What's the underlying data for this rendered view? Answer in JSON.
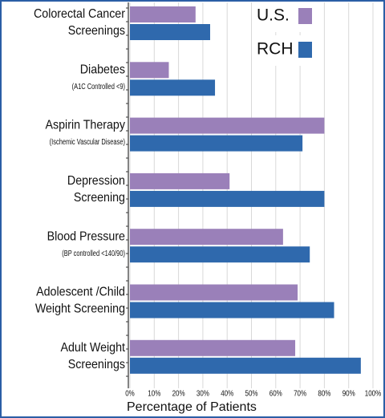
{
  "chart_data": {
    "type": "bar",
    "orientation": "horizontal",
    "categories": [
      [
        "Colorectal Cancer",
        "Screenings"
      ],
      [
        "Diabetes"
      ],
      [
        "Aspirin Therapy"
      ],
      [
        "Depression",
        "Screening"
      ],
      [
        "Blood Pressure"
      ],
      [
        "Adolescent /Child",
        "Weight Screening"
      ],
      [
        "Adult Weight",
        "Screenings"
      ]
    ],
    "category_notes": [
      null,
      "(A1C Controlled <9)",
      "(Ischemic Vascular Disease)",
      null,
      "(BP controlled <140/90)",
      null,
      null
    ],
    "series": [
      {
        "name": "U.S.",
        "color": "#9a80b9",
        "values": [
          27,
          16,
          80,
          41,
          63,
          69,
          68
        ]
      },
      {
        "name": "RCH",
        "color": "#2f69ad",
        "values": [
          33,
          35,
          71,
          80,
          74,
          84,
          95
        ]
      }
    ],
    "xlabel": "Percentage of Patients",
    "xlim": [
      0,
      100
    ],
    "xticks": [
      {
        "value": 0,
        "label": "0%"
      },
      {
        "value": 10,
        "label": "10%"
      },
      {
        "value": 20,
        "label": "20%"
      },
      {
        "value": 30,
        "label": "30%"
      },
      {
        "value": 40,
        "label": "40%"
      },
      {
        "value": 50,
        "label": "50%"
      },
      {
        "value": 60,
        "label": "60%"
      },
      {
        "value": 70,
        "label": "70%"
      },
      {
        "value": 80,
        "label": "80%"
      },
      {
        "value": 90,
        "label": "90%"
      },
      {
        "value": 100,
        "label": "100%"
      }
    ],
    "grid": true,
    "legend": "top-right"
  }
}
